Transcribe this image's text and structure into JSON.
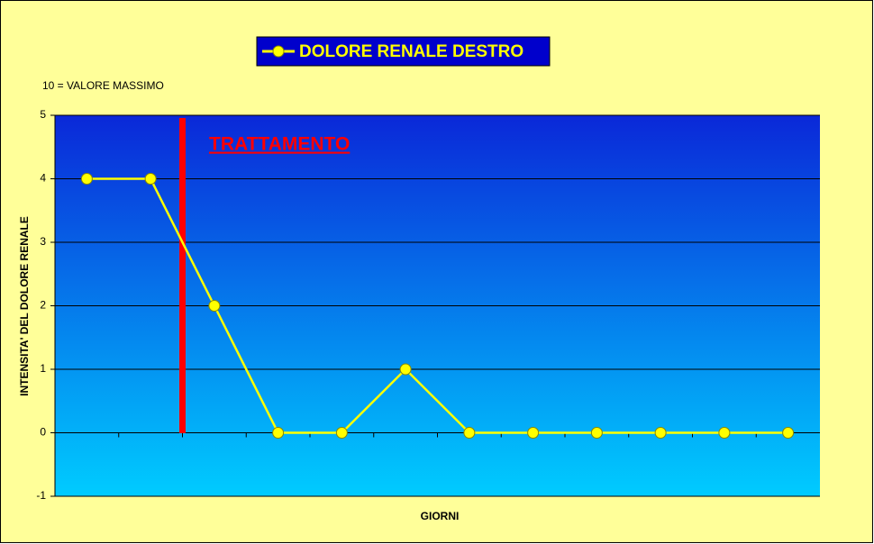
{
  "chart_data": {
    "type": "line",
    "series": [
      {
        "name": "DOLORE RENALE DESTRO",
        "color": "#ffff00",
        "values": [
          4,
          4,
          2,
          0,
          0,
          1,
          0,
          0,
          0,
          0,
          0,
          0
        ]
      }
    ],
    "categories": [
      null,
      null,
      null,
      null,
      null,
      null,
      null,
      null,
      null,
      null,
      null,
      null
    ],
    "ylim": [
      -1,
      5
    ],
    "yticks": [
      -1,
      0,
      1,
      2,
      3,
      4,
      5
    ],
    "grid": true,
    "y_label": "INTENSITA' DEL DOLORE RENALE",
    "x_label": "GIORNI",
    "annotations": [
      "10 = VALORE MASSIMO",
      "TRATTAMENTO"
    ]
  }
}
